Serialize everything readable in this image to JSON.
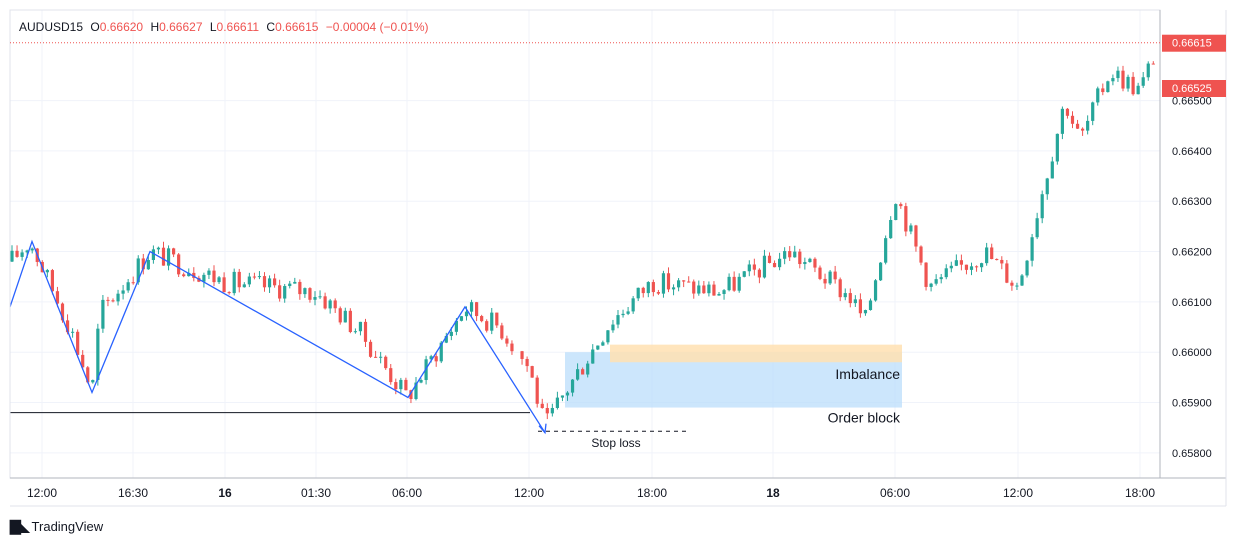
{
  "header": {
    "symbol": "AUDUSD",
    "timeframe": "15",
    "open_label": "O",
    "open": "0.66620",
    "high_label": "H",
    "high": "0.66627",
    "low_label": "L",
    "low": "0.66611",
    "close_label": "C",
    "close": "0.66615",
    "change": "−0.00004 (−0.01%)"
  },
  "brand": {
    "name": "TradingView"
  },
  "colors": {
    "up": "#26a69a",
    "down": "#ef5350",
    "zigzag": "#2962ff",
    "imbalance": "#ffe0b2",
    "order_block": "#bbdefb",
    "price_tag_bg": "#ef5350"
  },
  "chart_data": {
    "type": "candlestick",
    "symbol": "AUDUSD",
    "interval": "15",
    "ylim": [
      0.6575,
      0.6668
    ],
    "y_ticks": [
      "0.65800",
      "0.65900",
      "0.66000",
      "0.66100",
      "0.66200",
      "0.66300",
      "0.66400",
      "0.66500"
    ],
    "x_ticks": [
      "12:00",
      "16:30",
      "16",
      "01:30",
      "06:00",
      "12:00",
      "18:00",
      "18",
      "06:00",
      "12:00",
      "18:00"
    ],
    "price_tags": {
      "last_close": "0.66615",
      "marker": "0.66525"
    },
    "grid": true,
    "approx_path": [
      [
        "12:00",
        0.6618
      ],
      [
        "13:00",
        0.6622
      ],
      [
        "15:00",
        0.6605
      ],
      [
        "16:00",
        0.6592
      ],
      [
        "16:30",
        0.6608
      ],
      [
        "17:30",
        0.662
      ],
      [
        "19:30",
        0.6616
      ],
      [
        "16 00:00",
        0.6614
      ],
      [
        "01:30",
        0.6612
      ],
      [
        "03:30",
        0.6604
      ],
      [
        "06:00",
        0.6591
      ],
      [
        "08:30",
        0.6609
      ],
      [
        "10:30",
        0.6605
      ],
      [
        "12:00",
        0.6597
      ],
      [
        "12:30",
        0.6585
      ],
      [
        "14:00",
        0.6592
      ],
      [
        "16:00",
        0.6606
      ],
      [
        "18:00",
        0.6614
      ],
      [
        "20:30",
        0.6612
      ],
      [
        "22:30",
        0.662
      ],
      [
        "18 01:30",
        0.6611
      ],
      [
        "04:30",
        0.6606
      ],
      [
        "06:00",
        0.6632
      ],
      [
        "07:30",
        0.6613
      ],
      [
        "10:00",
        0.662
      ],
      [
        "12:00",
        0.6613
      ],
      [
        "13:30",
        0.665
      ],
      [
        "15:00",
        0.6642
      ],
      [
        "16:30",
        0.6656
      ],
      [
        "18:00",
        0.6652
      ],
      [
        "18:45",
        0.6662
      ]
    ],
    "annotations": [
      {
        "text": "Imbalance",
        "price_from": 0.66015,
        "price_to": 0.6598
      },
      {
        "text": "Order block",
        "price_from": 0.66,
        "price_to": 0.6589
      },
      {
        "text": "Stop loss",
        "price": 0.65843
      }
    ],
    "support_line": 0.6588,
    "zigzag": [
      [
        "11:30",
        0.6609
      ],
      [
        "12:30",
        0.6622
      ],
      [
        "15:30",
        0.6592
      ],
      [
        "17:30",
        0.662
      ],
      [
        "06:00",
        0.6591
      ],
      [
        "09:00",
        0.6609
      ],
      [
        "12:30",
        0.6584
      ]
    ]
  }
}
